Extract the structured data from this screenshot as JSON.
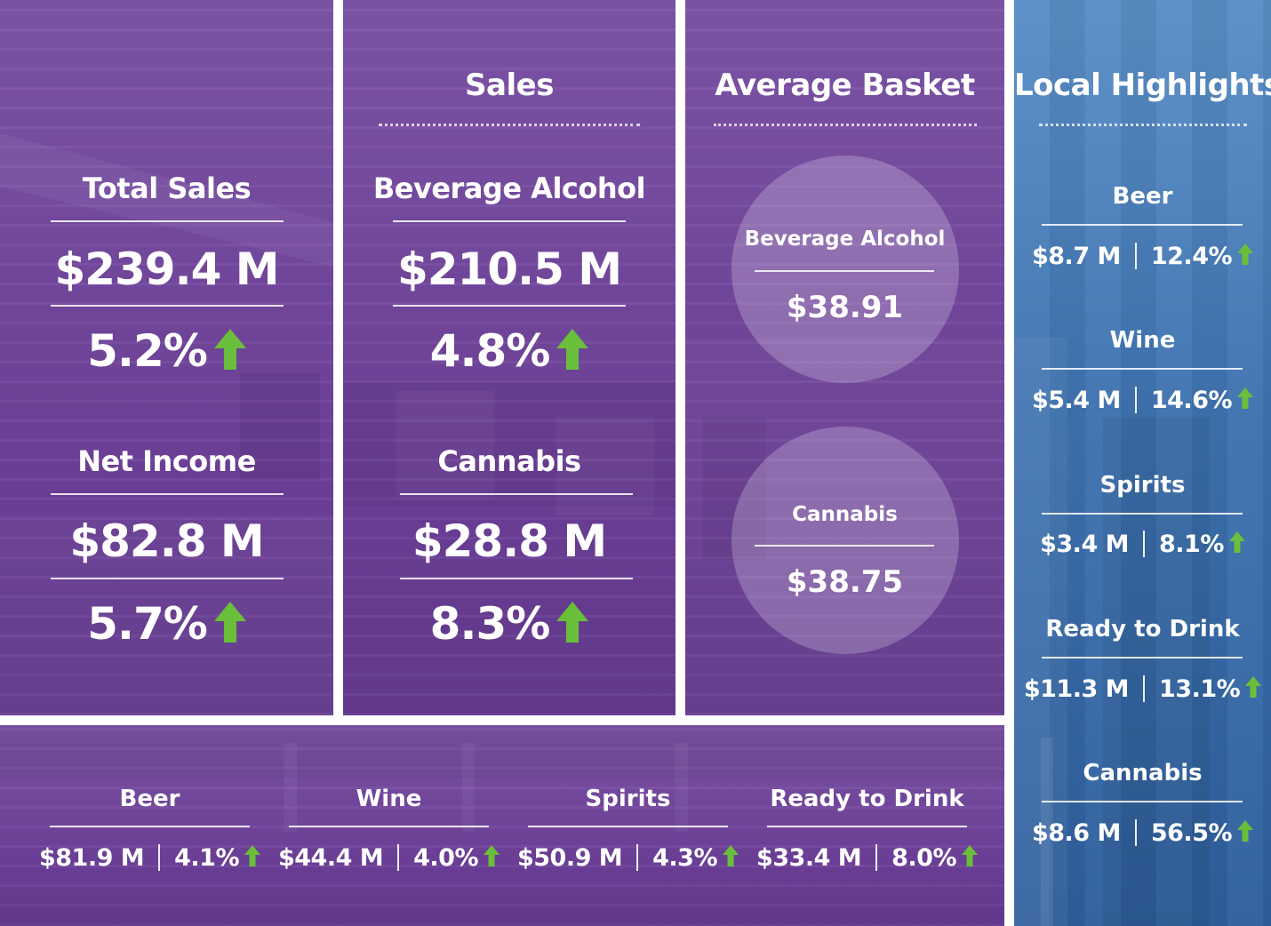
{
  "total_sales": {
    "title": "Total Sales",
    "value": "$239.4 M",
    "change": "5.2%"
  },
  "net_income": {
    "title": "Net Income",
    "value": "$82.8 M",
    "change": "5.7%"
  },
  "sales": {
    "heading": "Sales",
    "beverage_alcohol": {
      "title": "Beverage Alcohol",
      "value": "$210.5 M",
      "change": "4.8%"
    },
    "cannabis": {
      "title": "Cannabis",
      "value": "$28.8 M",
      "change": "8.3%"
    }
  },
  "average_basket": {
    "heading": "Average Basket",
    "beverage_alcohol": {
      "label": "Beverage Alcohol",
      "value": "$38.91"
    },
    "cannabis": {
      "label": "Cannabis",
      "value": "$38.75"
    }
  },
  "local_highlights": {
    "heading": "Local Highlights",
    "items": [
      {
        "name": "Beer",
        "value": "$8.7 M",
        "change": "12.4%"
      },
      {
        "name": "Wine",
        "value": "$5.4 M",
        "change": "14.6%"
      },
      {
        "name": "Spirits",
        "value": "$3.4 M",
        "change": "8.1%"
      },
      {
        "name": "Ready to Drink",
        "value": "$11.3 M",
        "change": "13.1%"
      },
      {
        "name": "Cannabis",
        "value": "$8.6 M",
        "change": "56.5%"
      }
    ]
  },
  "categories": [
    {
      "name": "Beer",
      "value": "$81.9 M",
      "change": "4.1%"
    },
    {
      "name": "Wine",
      "value": "$44.4 M",
      "change": "4.0%"
    },
    {
      "name": "Spirits",
      "value": "$50.9 M",
      "change": "4.3%"
    },
    {
      "name": "Ready to Drink",
      "value": "$33.4 M",
      "change": "8.0%"
    }
  ],
  "colors": {
    "purple": "#74489f",
    "blue": "#3e72b0",
    "arrow_green": "#6abf3a"
  },
  "icons": {
    "increase": "up-arrow-icon"
  }
}
